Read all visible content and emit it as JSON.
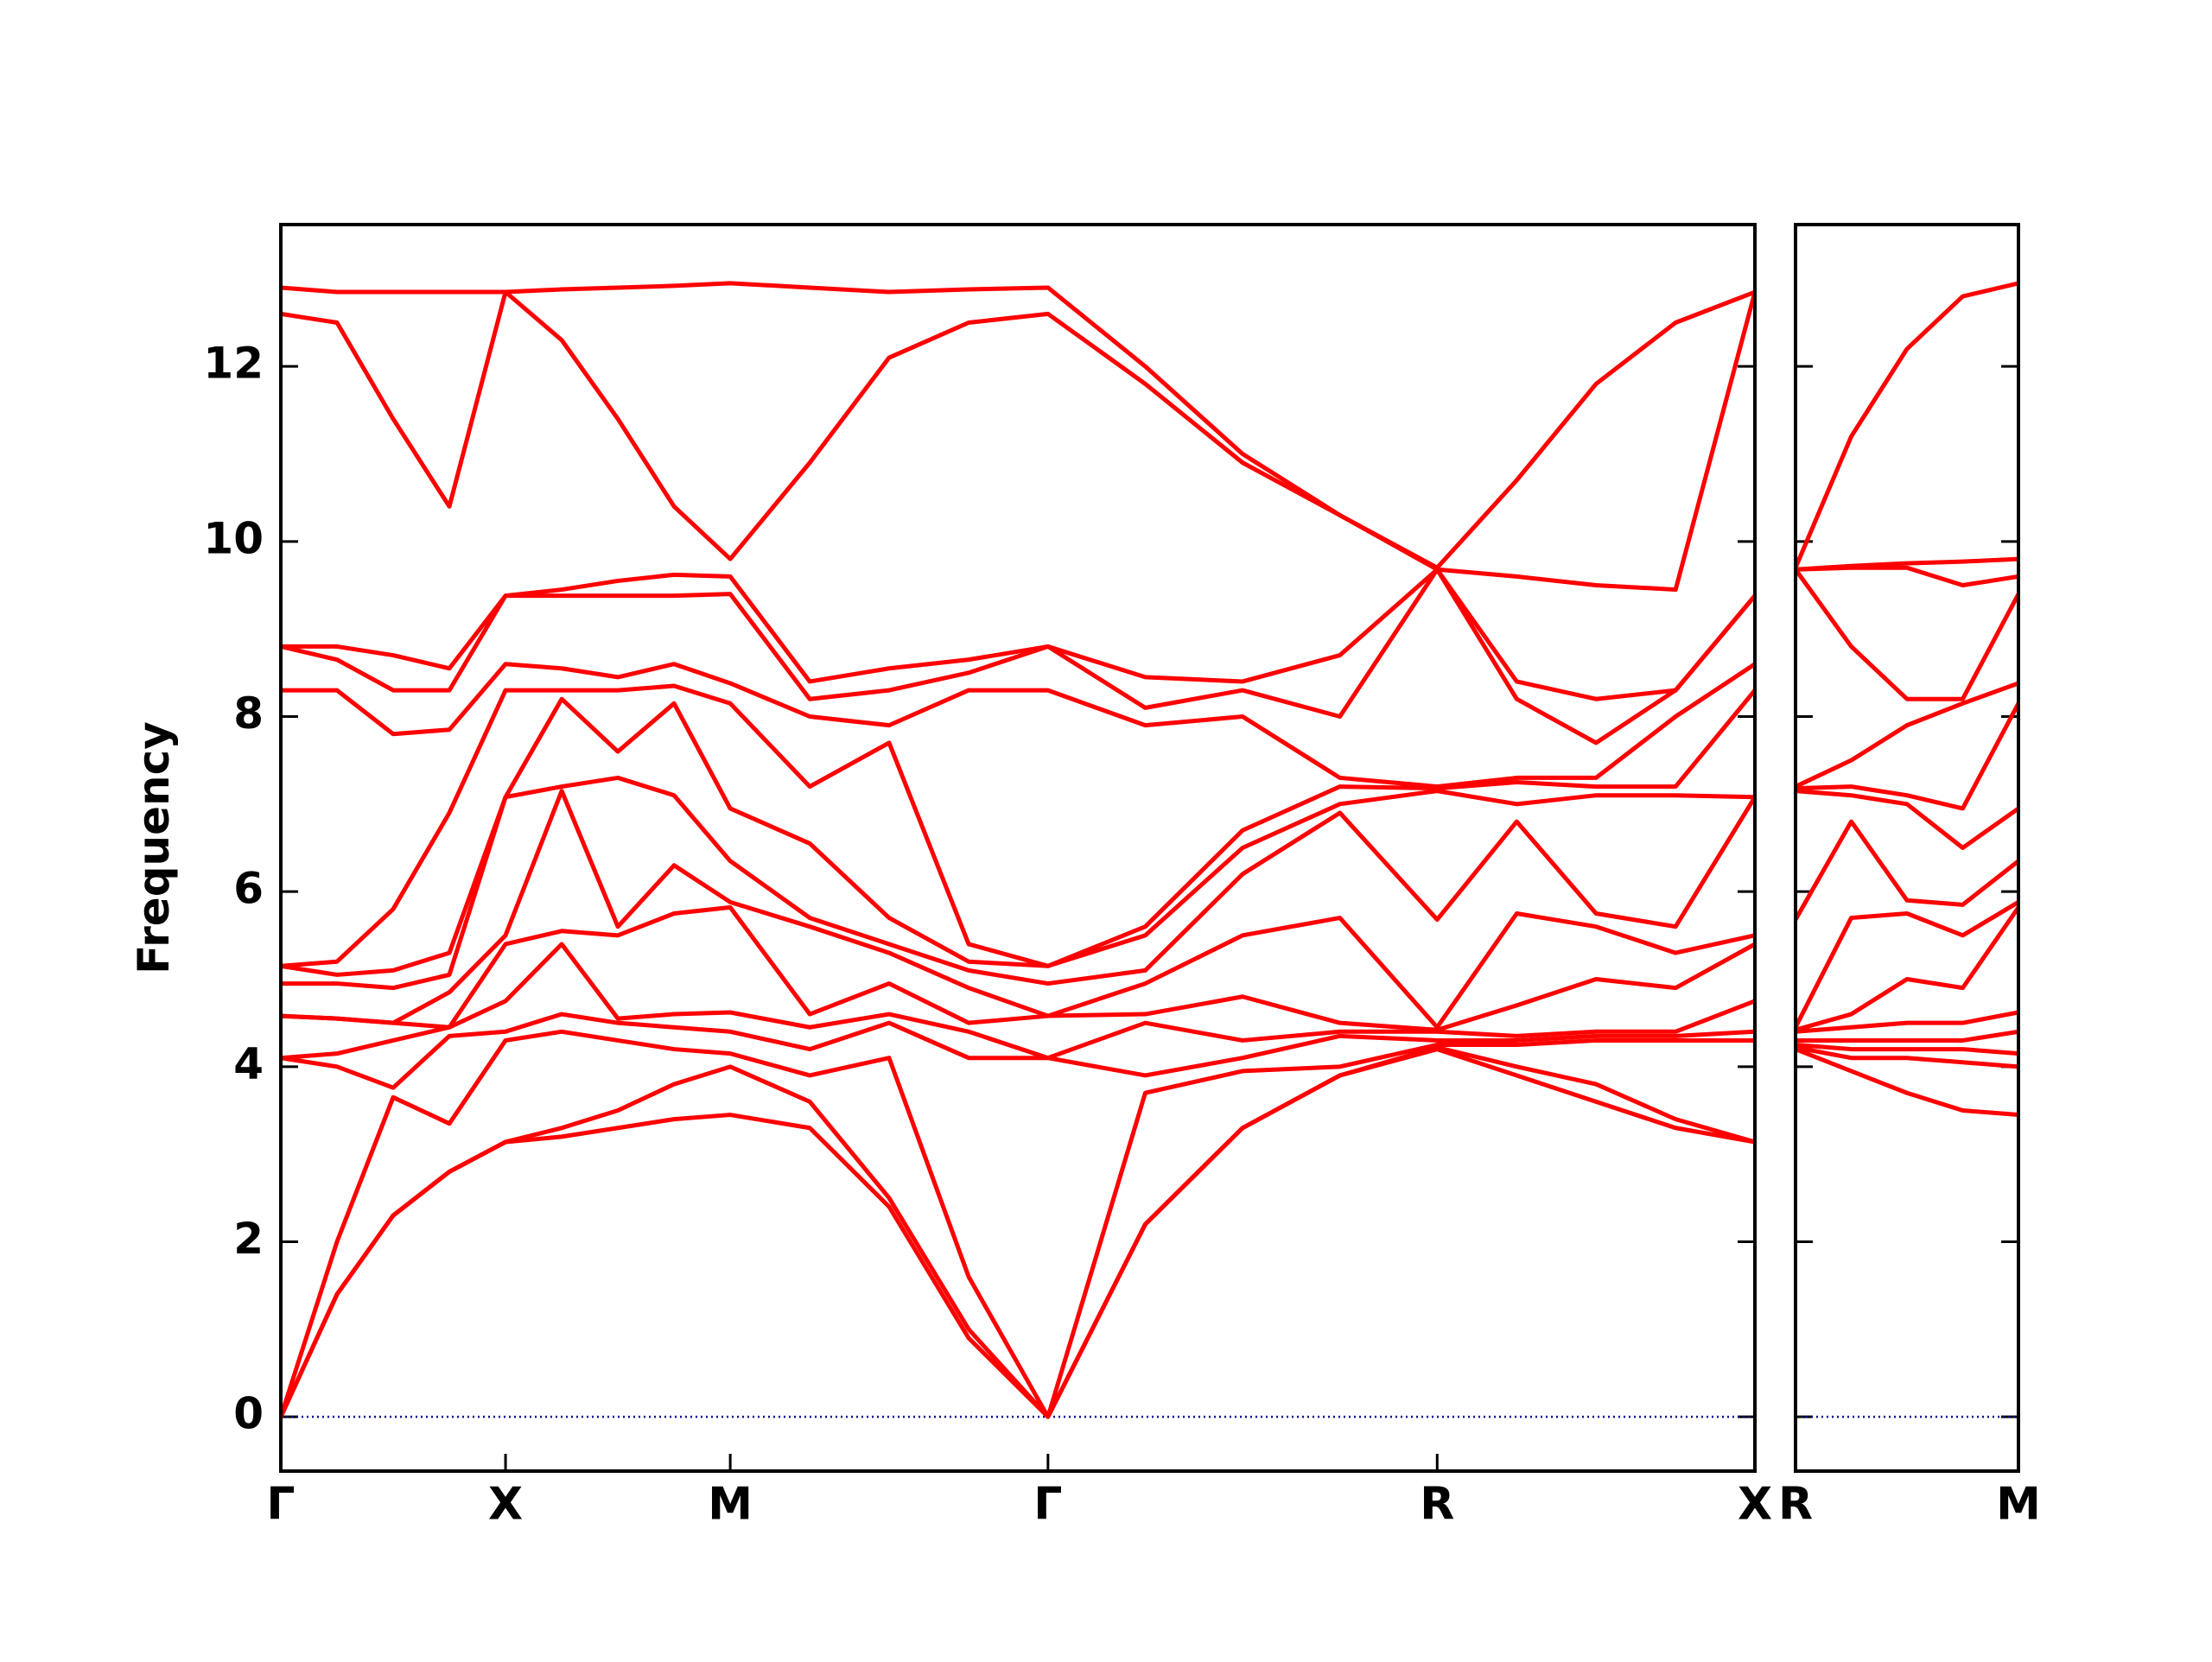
{
  "chart_data": [
    {
      "type": "line",
      "y_label": "Frequency",
      "color": "#ff0000",
      "hline": {
        "value": 0,
        "color": "#00008b"
      },
      "x": [
        0,
        0.25,
        0.5,
        0.75,
        1,
        1.25,
        1.5,
        1.75,
        2,
        2.354,
        2.707,
        3.061,
        3.414,
        3.847,
        4.28,
        4.713,
        5.146,
        5.5,
        5.853,
        6.207,
        6.56
      ],
      "xlim": [
        0,
        6.56
      ],
      "xticks": [
        {
          "value": 0,
          "label": "Γ"
        },
        {
          "value": 1,
          "label": "X"
        },
        {
          "value": 2,
          "label": "M"
        },
        {
          "value": 3.414,
          "label": "Γ"
        },
        {
          "value": 5.146,
          "label": "R"
        },
        {
          "value": 6.56,
          "label": "X"
        }
      ],
      "ylim": [
        -0.62,
        13.62
      ],
      "yticks": [
        0,
        2,
        4,
        6,
        8,
        10,
        12
      ],
      "series": [
        {
          "values": [
            0,
            1.4,
            2.3,
            2.8,
            3.14,
            3.2,
            3.3,
            3.4,
            3.45,
            3.3,
            2.4,
            0.9,
            0,
            2.2,
            3.3,
            3.9,
            4.2,
            3.9,
            3.6,
            3.3,
            3.14
          ]
        },
        {
          "values": [
            0,
            1.4,
            2.3,
            2.8,
            3.14,
            3.3,
            3.5,
            3.8,
            4.0,
            3.6,
            2.5,
            1.0,
            0,
            2.2,
            3.3,
            3.9,
            4.22,
            4.0,
            3.8,
            3.4,
            3.14
          ]
        },
        {
          "values": [
            0,
            2.0,
            3.65,
            3.35,
            4.3,
            4.4,
            4.3,
            4.2,
            4.15,
            3.9,
            4.1,
            1.6,
            0,
            3.7,
            3.95,
            4.0,
            4.25,
            4.25,
            4.3,
            4.3,
            4.3
          ]
        },
        {
          "values": [
            4.1,
            4.0,
            3.76,
            4.35,
            4.4,
            4.6,
            4.5,
            4.45,
            4.4,
            4.2,
            4.5,
            4.1,
            4.1,
            3.9,
            4.1,
            4.35,
            4.3,
            4.3,
            4.35,
            4.35,
            4.4
          ]
        },
        {
          "values": [
            4.1,
            4.15,
            4.3,
            4.45,
            4.75,
            5.4,
            4.55,
            4.6,
            4.62,
            4.45,
            4.6,
            4.4,
            4.1,
            4.5,
            4.3,
            4.4,
            4.4,
            4.35,
            4.4,
            4.4,
            4.75
          ]
        },
        {
          "values": [
            4.58,
            4.55,
            4.5,
            4.45,
            5.4,
            5.55,
            5.5,
            5.75,
            5.82,
            4.6,
            4.95,
            4.5,
            4.58,
            4.6,
            4.8,
            4.5,
            4.42,
            4.7,
            5.0,
            4.9,
            5.4
          ]
        },
        {
          "values": [
            4.58,
            4.55,
            4.5,
            4.85,
            5.5,
            7.15,
            5.6,
            6.3,
            5.88,
            5.6,
            5.3,
            4.9,
            4.58,
            4.95,
            5.5,
            5.7,
            4.45,
            5.75,
            5.6,
            5.3,
            5.5
          ]
        },
        {
          "values": [
            4.95,
            4.95,
            4.9,
            5.05,
            7.08,
            7.2,
            7.3,
            7.1,
            6.35,
            5.7,
            5.4,
            5.1,
            4.95,
            5.1,
            6.2,
            6.9,
            5.68,
            6.8,
            5.75,
            5.6,
            7.08
          ]
        },
        {
          "values": [
            5.15,
            5.05,
            5.1,
            5.3,
            7.08,
            8.2,
            7.6,
            8.15,
            6.95,
            6.55,
            5.7,
            5.2,
            5.15,
            5.5,
            6.5,
            7.0,
            7.15,
            7.0,
            7.1,
            7.1,
            7.08
          ]
        },
        {
          "values": [
            5.15,
            5.2,
            5.8,
            6.9,
            8.3,
            8.3,
            8.3,
            8.35,
            8.15,
            7.2,
            7.7,
            5.4,
            5.15,
            5.6,
            6.7,
            7.2,
            7.18,
            7.25,
            7.2,
            7.2,
            8.3
          ]
        },
        {
          "values": [
            8.3,
            8.3,
            7.8,
            7.85,
            8.6,
            8.55,
            8.45,
            8.6,
            8.38,
            8.0,
            7.9,
            8.3,
            8.3,
            7.9,
            8.0,
            7.3,
            7.2,
            7.3,
            7.3,
            8.0,
            8.6
          ]
        },
        {
          "values": [
            8.8,
            8.65,
            8.3,
            8.3,
            9.38,
            9.38,
            9.38,
            9.38,
            9.4,
            8.2,
            8.3,
            8.5,
            8.8,
            8.1,
            8.3,
            8.0,
            9.68,
            8.2,
            7.7,
            8.3,
            9.38
          ]
        },
        {
          "values": [
            8.8,
            8.8,
            8.7,
            8.55,
            9.38,
            9.45,
            9.55,
            9.62,
            9.6,
            8.4,
            8.55,
            8.65,
            8.8,
            8.45,
            8.4,
            8.7,
            9.68,
            8.4,
            8.2,
            8.3,
            9.38
          ]
        },
        {
          "values": [
            12.6,
            12.5,
            11.4,
            10.4,
            12.85,
            12.3,
            11.4,
            10.4,
            9.8,
            10.9,
            12.1,
            12.5,
            12.6,
            11.8,
            10.9,
            10.3,
            9.68,
            9.6,
            9.5,
            9.45,
            12.85
          ]
        },
        {
          "values": [
            12.9,
            12.85,
            12.85,
            12.85,
            12.85,
            12.88,
            12.9,
            12.92,
            12.95,
            12.9,
            12.85,
            12.88,
            12.9,
            12.0,
            11.0,
            10.3,
            9.7,
            10.7,
            11.8,
            12.5,
            12.85
          ]
        }
      ]
    },
    {
      "type": "line",
      "color": "#ff0000",
      "hline": {
        "value": 0,
        "color": "#00008b"
      },
      "x": [
        0,
        0.25,
        0.5,
        0.75,
        1
      ],
      "xlim": [
        0,
        1
      ],
      "xticks": [
        {
          "value": 0,
          "label": "R"
        },
        {
          "value": 1,
          "label": "M"
        }
      ],
      "ylim": [
        -0.62,
        13.62
      ],
      "yticks": [
        0,
        2,
        4,
        6,
        8,
        10,
        12
      ],
      "series": [
        {
          "values": [
            4.2,
            3.95,
            3.7,
            3.5,
            3.45
          ]
        },
        {
          "values": [
            4.22,
            4.1,
            4.1,
            4.05,
            4.0
          ]
        },
        {
          "values": [
            4.25,
            4.2,
            4.2,
            4.2,
            4.15
          ]
        },
        {
          "values": [
            4.3,
            4.3,
            4.3,
            4.3,
            4.4
          ]
        },
        {
          "values": [
            4.4,
            4.45,
            4.5,
            4.5,
            4.62
          ]
        },
        {
          "values": [
            4.42,
            4.6,
            5.0,
            4.9,
            5.82
          ]
        },
        {
          "values": [
            4.45,
            5.7,
            5.75,
            5.5,
            5.88
          ]
        },
        {
          "values": [
            5.68,
            6.8,
            5.9,
            5.85,
            6.35
          ]
        },
        {
          "values": [
            7.15,
            7.1,
            7.0,
            6.5,
            6.95
          ]
        },
        {
          "values": [
            7.18,
            7.2,
            7.1,
            6.95,
            8.15
          ]
        },
        {
          "values": [
            7.2,
            7.5,
            7.9,
            8.15,
            8.38
          ]
        },
        {
          "values": [
            9.68,
            8.8,
            8.2,
            8.2,
            9.4
          ]
        },
        {
          "values": [
            9.68,
            9.7,
            9.7,
            9.5,
            9.6
          ]
        },
        {
          "values": [
            9.68,
            9.72,
            9.75,
            9.77,
            9.8
          ]
        },
        {
          "values": [
            9.7,
            11.2,
            12.2,
            12.8,
            12.95
          ]
        }
      ]
    }
  ]
}
